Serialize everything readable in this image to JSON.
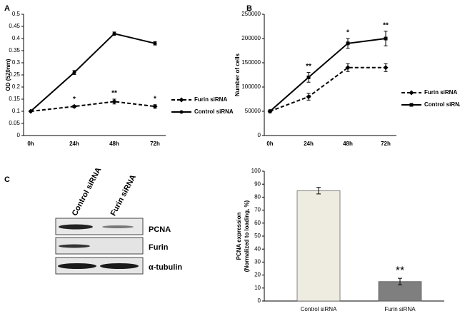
{
  "chart_data": [
    {
      "type": "line",
      "panel": "A",
      "y_label": "OD (570nm)",
      "categories": [
        "0h",
        "24h",
        "48h",
        "72h"
      ],
      "ylim": [
        0,
        0.5
      ],
      "yticks": [
        0,
        0.05,
        0.1,
        0.15,
        0.2,
        0.25,
        0.3,
        0.35,
        0.4,
        0.45,
        0.5
      ],
      "legend": "right",
      "series": [
        {
          "name": "Furin siRNA",
          "color": "#000000",
          "dashed": true,
          "marker": "diamond",
          "values": [
            0.1,
            0.12,
            0.14,
            0.12
          ],
          "errors": [
            0,
            0.005,
            0.01,
            0.007
          ],
          "significance": [
            null,
            "*",
            "**",
            "*"
          ]
        },
        {
          "name": "Control siRNA",
          "color": "#000000",
          "dashed": false,
          "marker": "circle",
          "values": [
            0.1,
            0.26,
            0.42,
            0.38
          ],
          "errors": [
            0,
            0.008,
            0.007,
            0.007
          ]
        }
      ]
    },
    {
      "type": "line",
      "panel": "B",
      "y_label": "Number of cells",
      "categories": [
        "0h",
        "24h",
        "48h",
        "72h"
      ],
      "ylim": [
        0,
        250000
      ],
      "yticks": [
        0,
        50000,
        100000,
        150000,
        200000,
        250000
      ],
      "legend": "right",
      "series": [
        {
          "name": "Furin siRNA",
          "color": "#000000",
          "dashed": true,
          "marker": "diamond",
          "values": [
            50000,
            80000,
            140000,
            140000
          ],
          "errors": [
            3000,
            7000,
            8000,
            8000
          ]
        },
        {
          "name": "Control siRNA",
          "color": "#000000",
          "dashed": false,
          "marker": "square",
          "values": [
            50000,
            120000,
            190000,
            200000
          ],
          "errors": [
            3000,
            10000,
            10000,
            15000
          ],
          "significance": [
            null,
            "**",
            "*",
            "**"
          ]
        }
      ]
    },
    {
      "type": "bar",
      "y_label": [
        "PCNA expression",
        "(Normalized to loading, %)"
      ],
      "categories": [
        "Control siRNA",
        "Furin siRNA"
      ],
      "values": [
        85,
        15
      ],
      "errors": [
        2.5,
        2.5
      ],
      "colors": [
        "#eeebe0",
        "#7f7f7f"
      ],
      "significance": [
        null,
        "**"
      ],
      "ylim": [
        0,
        100
      ],
      "yticks": [
        0,
        10,
        20,
        30,
        40,
        50,
        60,
        70,
        80,
        90,
        100
      ]
    }
  ],
  "blot": {
    "panel": "C",
    "lanes": [
      "Control siRNA",
      "Furin siRNA"
    ],
    "rows": [
      "PCNA",
      "Furin",
      "α-tubulin"
    ]
  }
}
